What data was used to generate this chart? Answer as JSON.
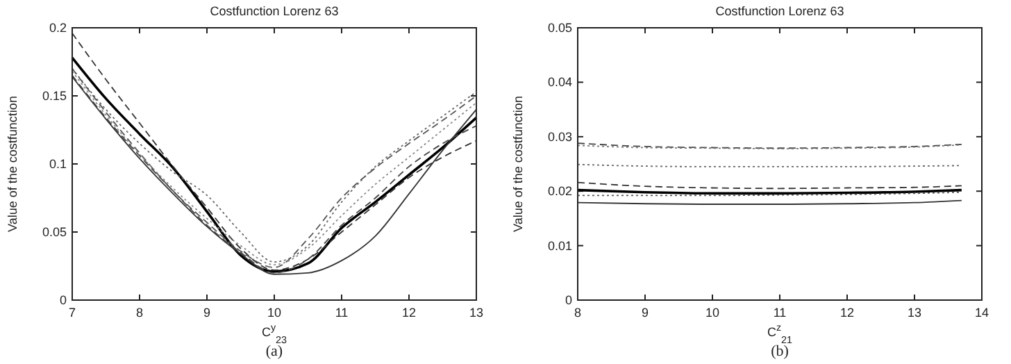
{
  "chart_data": [
    {
      "type": "line",
      "title": "Costfunction Lorenz 63",
      "xlabel": "C$^{y}$$_{23}$",
      "ylabel": "Value of the costfunction",
      "annotations": [
        "(a)"
      ],
      "xlim": [
        7,
        13
      ],
      "xticks": [
        7,
        8,
        9,
        10,
        11,
        12,
        13
      ],
      "ylim": [
        0,
        0.2
      ],
      "yticks": [
        0,
        0.05,
        0.1,
        0.15,
        0.2
      ],
      "grid": false,
      "marker": "none",
      "x": [
        7,
        7.5,
        8,
        8.5,
        9,
        9.5,
        10,
        10.5,
        11,
        11.5,
        12,
        12.5,
        13
      ],
      "series": [
        {
          "color": "#000000",
          "line_style": "solid",
          "values": [
            0.178,
            0.148,
            0.122,
            0.097,
            0.065,
            0.033,
            0.021,
            0.027,
            0.053,
            0.072,
            0.092,
            0.112,
            0.134
          ]
        },
        {
          "color": "#333333",
          "line_style": "solid",
          "values": [
            0.164,
            0.133,
            0.104,
            0.078,
            0.054,
            0.034,
            0.019,
            0.02,
            0.029,
            0.047,
            0.078,
            0.11,
            0.14
          ]
        },
        {
          "color": "#333333",
          "line_style": "dashed",
          "values": [
            0.196,
            0.162,
            0.13,
            0.098,
            0.068,
            0.038,
            0.022,
            0.03,
            0.05,
            0.07,
            0.09,
            0.105,
            0.117
          ]
        },
        {
          "color": "#666666",
          "line_style": "dotted",
          "values": [
            0.17,
            0.14,
            0.115,
            0.094,
            0.077,
            0.05,
            0.028,
            0.04,
            0.072,
            0.098,
            0.117,
            0.135,
            0.153
          ]
        },
        {
          "color": "#555555",
          "line_style": "dashed",
          "values": [
            0.17,
            0.138,
            0.108,
            0.08,
            0.057,
            0.036,
            0.024,
            0.045,
            0.075,
            0.097,
            0.115,
            0.132,
            0.15
          ]
        },
        {
          "color": "#888888",
          "line_style": "dotted",
          "values": [
            0.168,
            0.136,
            0.107,
            0.082,
            0.06,
            0.04,
            0.026,
            0.038,
            0.062,
            0.085,
            0.105,
            0.125,
            0.145
          ]
        },
        {
          "color": "#444444",
          "line_style": "dashed",
          "values": [
            0.165,
            0.134,
            0.106,
            0.08,
            0.055,
            0.035,
            0.02,
            0.03,
            0.055,
            0.075,
            0.098,
            0.115,
            0.128
          ]
        }
      ]
    },
    {
      "type": "line",
      "title": "Costfunction Lorenz 63",
      "xlabel": "C$^{z}$$_{21}$",
      "ylabel": "Value of the costfunction",
      "annotations": [
        "(b)"
      ],
      "xlim": [
        8,
        14
      ],
      "xticks": [
        8,
        9,
        10,
        11,
        12,
        13,
        14
      ],
      "ylim": [
        0,
        0.05
      ],
      "yticks": [
        0,
        0.01,
        0.02,
        0.03,
        0.04,
        0.05
      ],
      "grid": false,
      "marker": "none",
      "x": [
        8,
        9,
        10,
        11,
        12,
        13,
        13.7
      ],
      "series": [
        {
          "color": "#333333",
          "line_style": "solid",
          "values": [
            0.0179,
            0.0177,
            0.0176,
            0.0176,
            0.0177,
            0.0179,
            0.0183
          ]
        },
        {
          "color": "#000000",
          "line_style": "solid",
          "values": [
            0.0202,
            0.0198,
            0.0196,
            0.0196,
            0.0197,
            0.0199,
            0.0202
          ]
        },
        {
          "color": "#555555",
          "line_style": "dotted",
          "values": [
            0.0192,
            0.0192,
            0.0192,
            0.0193,
            0.0194,
            0.0196,
            0.0198
          ]
        },
        {
          "color": "#333333",
          "line_style": "dashed",
          "values": [
            0.0216,
            0.0209,
            0.0206,
            0.0205,
            0.0206,
            0.0207,
            0.021
          ]
        },
        {
          "color": "#666666",
          "line_style": "dotted",
          "values": [
            0.0249,
            0.0246,
            0.0245,
            0.0245,
            0.0245,
            0.0246,
            0.0247
          ]
        },
        {
          "color": "#444444",
          "line_style": "dashed",
          "values": [
            0.0288,
            0.0282,
            0.028,
            0.0279,
            0.028,
            0.0282,
            0.0286
          ]
        },
        {
          "color": "#777777",
          "line_style": "dotted",
          "values": [
            0.0284,
            0.028,
            0.0279,
            0.0278,
            0.0279,
            0.0281,
            0.0285
          ]
        }
      ]
    }
  ]
}
